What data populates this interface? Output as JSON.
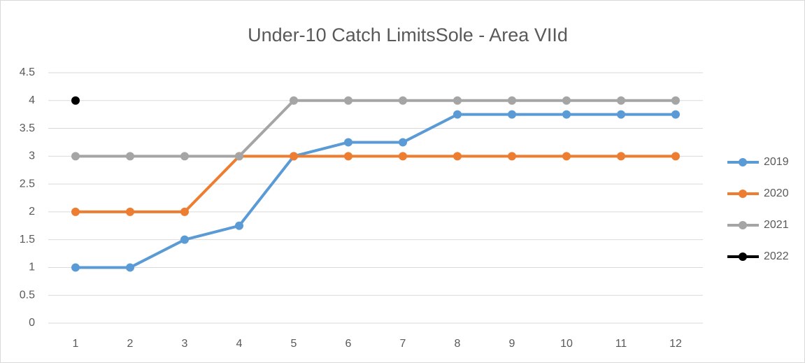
{
  "chart_data": {
    "type": "line",
    "title": "Under-10 Catch LimitsSole - Area VIId",
    "categories": [
      "1",
      "2",
      "3",
      "4",
      "5",
      "6",
      "7",
      "8",
      "9",
      "10",
      "11",
      "12"
    ],
    "series": [
      {
        "name": "2019",
        "color": "#5b9bd5",
        "values": [
          1,
          1,
          1.5,
          1.75,
          3,
          3.25,
          3.25,
          3.75,
          3.75,
          3.75,
          3.75,
          3.75
        ]
      },
      {
        "name": "2020",
        "color": "#ed7d31",
        "values": [
          2,
          2,
          2,
          3,
          3,
          3,
          3,
          3,
          3,
          3,
          3,
          3
        ]
      },
      {
        "name": "2021",
        "color": "#a5a5a5",
        "values": [
          3,
          3,
          3,
          3,
          4,
          4,
          4,
          4,
          4,
          4,
          4,
          4
        ]
      },
      {
        "name": "2022",
        "color": "#000000",
        "values": [
          4,
          null,
          null,
          null,
          null,
          null,
          null,
          null,
          null,
          null,
          null,
          null
        ]
      }
    ],
    "ylim": [
      0,
      4.5
    ],
    "yticks": [
      0,
      0.5,
      1,
      1.5,
      2,
      2.5,
      3,
      3.5,
      4,
      4.5
    ],
    "grid": true,
    "legend": "right"
  }
}
